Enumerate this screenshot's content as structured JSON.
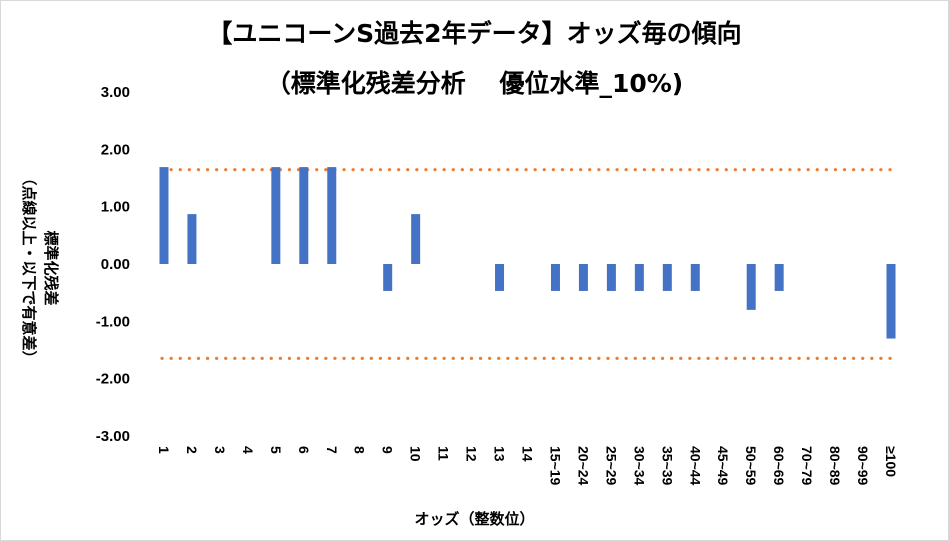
{
  "chart_data": {
    "type": "bar",
    "title": "【ユニコーンS過去2年データ】オッズ毎の傾向",
    "subtitle": "（標準化残差分析　 優位水準_10%)",
    "ylabel": "標準化残差",
    "ylabel_note": "（点線以上・以下で有意差）",
    "xlabel": "オッズ（整数位）",
    "ylim": [
      -3,
      3
    ],
    "y_ticks": [
      "3.00",
      "2.00",
      "1.00",
      "0.00",
      "-1.00",
      "-2.00",
      "-3.00"
    ],
    "y_tick_values": [
      3,
      2,
      1,
      0,
      -1,
      -2,
      -3
    ],
    "categories": [
      "1",
      "2",
      "3",
      "4",
      "5",
      "6",
      "7",
      "8",
      "9",
      "10",
      "11",
      "12",
      "13",
      "14",
      "15~19",
      "20~24",
      "25~29",
      "30~34",
      "35~39",
      "40~44",
      "45~49",
      "50~59",
      "60~69",
      "70~79",
      "80~89",
      "90~99",
      "≥100"
    ],
    "series": [
      {
        "values": [
          1.69,
          0.87,
          0,
          0,
          1.69,
          1.69,
          1.69,
          0,
          -0.47,
          0.87,
          0,
          0,
          -0.47,
          0,
          -0.47,
          -0.47,
          -0.47,
          -0.47,
          -0.47,
          -0.47,
          0,
          -0.8,
          -0.47,
          0,
          0,
          0,
          -1.3
        ],
        "color": "#4472c4"
      }
    ],
    "reference_lines": [
      1.645,
      -1.645
    ],
    "reference_line_color": "#ed7d31",
    "grid": false
  }
}
